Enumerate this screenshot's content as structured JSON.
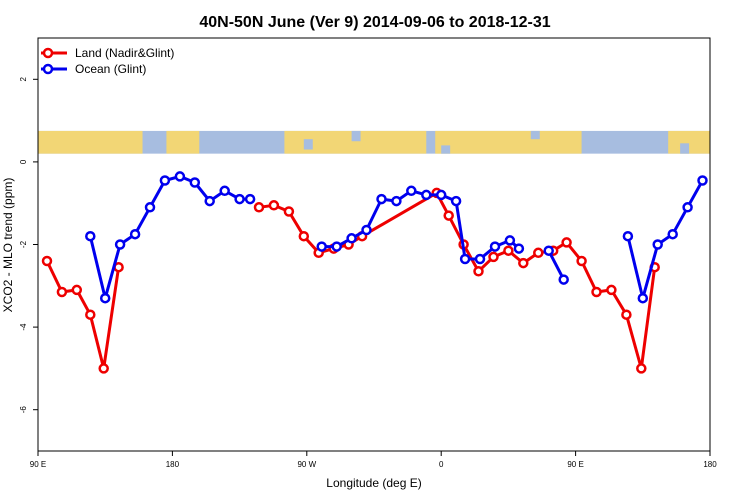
{
  "chart_data": {
    "type": "line",
    "title": "40N-50N June (Ver 9)   2014-09-06 to 2018-12-31",
    "xlabel": "Longitude (deg E)",
    "ylabel": "XCO2 - MLO trend (ppm)",
    "xlim": [
      90,
      540
    ],
    "ylim": [
      -7,
      3
    ],
    "x_ticks": [
      {
        "value": 90,
        "label": "90 E"
      },
      {
        "value": 180,
        "label": "180"
      },
      {
        "value": 270,
        "label": "90 W"
      },
      {
        "value": 360,
        "label": "0"
      },
      {
        "value": 450,
        "label": "90 E"
      },
      {
        "value": 540,
        "label": "180"
      }
    ],
    "y_ticks": [
      {
        "value": 2,
        "label": "2"
      },
      {
        "value": 0,
        "label": "0"
      },
      {
        "value": -2,
        "label": "-2"
      },
      {
        "value": -4,
        "label": "-4"
      },
      {
        "value": -6,
        "label": "-6"
      }
    ],
    "grid": false,
    "legend_position": "top-left",
    "map_strip": {
      "y_bottom": 0.2,
      "y_top": 0.75,
      "land_color": "#f2d675",
      "ocean_color": "#a7bde0"
    },
    "series": [
      {
        "name": "Land (Nadir&Glint)",
        "color": "#ee0000",
        "segments": [
          [
            [
              96,
              -2.4
            ],
            [
              106,
              -3.15
            ],
            [
              116,
              -3.1
            ],
            [
              125,
              -3.7
            ],
            [
              134,
              -5.0
            ],
            [
              144,
              -2.55
            ]
          ],
          [
            [
              238,
              -1.1
            ],
            [
              248,
              -1.05
            ],
            [
              258,
              -1.2
            ],
            [
              268,
              -1.8
            ],
            [
              278,
              -2.2
            ],
            [
              288,
              -2.1
            ],
            [
              298,
              -2.0
            ],
            [
              307,
              -1.8
            ],
            [
              357,
              -0.75
            ],
            [
              365,
              -1.3
            ],
            [
              375,
              -2.0
            ],
            [
              385,
              -2.65
            ],
            [
              395,
              -2.3
            ],
            [
              405,
              -2.15
            ],
            [
              415,
              -2.45
            ],
            [
              425,
              -2.2
            ],
            [
              435,
              -2.15
            ],
            [
              444,
              -1.95
            ],
            [
              454,
              -2.4
            ],
            [
              464,
              -3.15
            ],
            [
              474,
              -3.1
            ],
            [
              484,
              -3.7
            ],
            [
              494,
              -5.0
            ],
            [
              503,
              -2.55
            ]
          ]
        ]
      },
      {
        "name": "Ocean (Glint)",
        "color": "#0000ee",
        "segments": [
          [
            [
              125,
              -1.8
            ],
            [
              135,
              -3.3
            ],
            [
              145,
              -2.0
            ],
            [
              155,
              -1.75
            ],
            [
              165,
              -1.1
            ],
            [
              175,
              -0.45
            ],
            [
              185,
              -0.35
            ],
            [
              195,
              -0.5
            ],
            [
              205,
              -0.95
            ],
            [
              215,
              -0.7
            ],
            [
              225,
              -0.9
            ],
            [
              232,
              -0.9
            ]
          ],
          [
            [
              280,
              -2.05
            ],
            [
              290,
              -2.05
            ],
            [
              300,
              -1.85
            ],
            [
              310,
              -1.65
            ],
            [
              320,
              -0.9
            ],
            [
              330,
              -0.95
            ],
            [
              340,
              -0.7
            ],
            [
              350,
              -0.8
            ],
            [
              360,
              -0.8
            ],
            [
              370,
              -0.95
            ],
            [
              376,
              -2.35
            ],
            [
              386,
              -2.35
            ],
            [
              396,
              -2.05
            ],
            [
              406,
              -1.9
            ],
            [
              412,
              -2.1
            ]
          ],
          [
            [
              432,
              -2.15
            ],
            [
              442,
              -2.85
            ]
          ],
          [
            [
              485,
              -1.8
            ],
            [
              495,
              -3.3
            ],
            [
              505,
              -2.0
            ],
            [
              515,
              -1.75
            ],
            [
              525,
              -1.1
            ],
            [
              535,
              -0.45
            ]
          ]
        ]
      }
    ]
  }
}
